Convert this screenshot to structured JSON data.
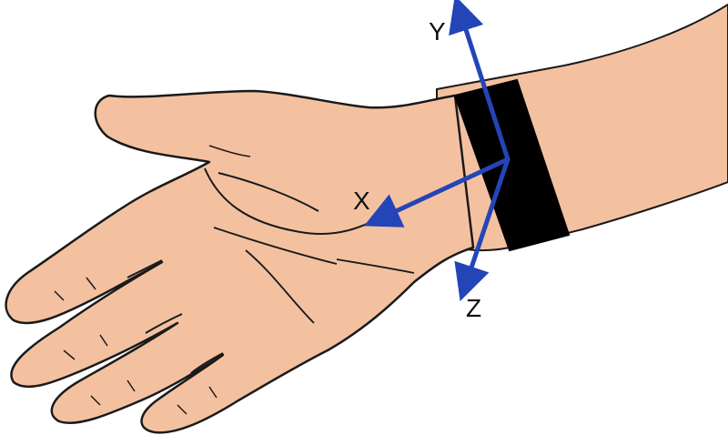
{
  "colors": {
    "skin": "#F4C1A0",
    "outline": "#1a1a1a",
    "band": "#000000",
    "axis": "#2445B8"
  },
  "axes": [
    {
      "label": "X",
      "direction": "toward-palm"
    },
    {
      "label": "Y",
      "direction": "up"
    },
    {
      "label": "Z",
      "direction": "down"
    }
  ]
}
